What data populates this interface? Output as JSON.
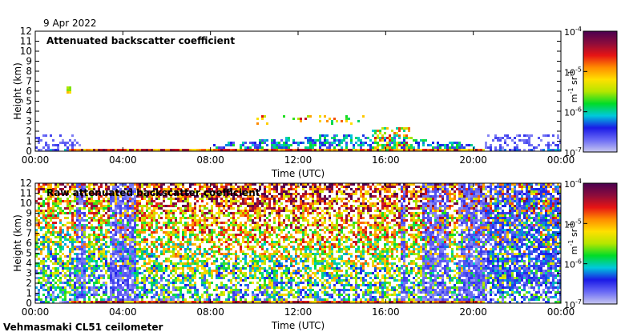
{
  "header": {
    "date": "9 Apr 2022"
  },
  "footer": {
    "instrument": "Vehmasmaki CL51 ceilometer"
  },
  "colormap": {
    "stops": [
      "#c8c8f0",
      "#6a6af5",
      "#1a1ae6",
      "#00c8dc",
      "#00dc28",
      "#b4e600",
      "#ffe000",
      "#ff8c00",
      "#e61414",
      "#8c0c3c",
      "#4a0050"
    ]
  },
  "chart_data": [
    {
      "type": "heatmap",
      "title": "Attenuated backscatter coefficient",
      "xlabel": "Time (UTC)",
      "ylabel": "Height (km)",
      "x_ticks": [
        "00:00",
        "04:00",
        "08:00",
        "12:00",
        "16:00",
        "20:00",
        "00:00"
      ],
      "xlim_hours": [
        0,
        24
      ],
      "y_ticks": [
        "0",
        "1",
        "2",
        "3",
        "4",
        "5",
        "6",
        "7",
        "8",
        "9",
        "10",
        "11",
        "12"
      ],
      "ylim_km": [
        0,
        12
      ],
      "colorbar": {
        "scale": "log",
        "ticks": [
          {
            "base": "10",
            "exp": "-4"
          },
          {
            "base": "10",
            "exp": "-5"
          },
          {
            "base": "10",
            "exp": "-6"
          },
          {
            "base": "10",
            "exp": "-7"
          }
        ],
        "unit": {
          "m": "m",
          "m_exp": "-1",
          "sr": " sr",
          "sr_exp": "-1"
        },
        "range": [
          1e-07,
          0.0001
        ]
      }
    },
    {
      "type": "heatmap",
      "title": "Raw attenuated backscatter coefficient",
      "xlabel": "Time (UTC)",
      "ylabel": "Height (km)",
      "x_ticks": [
        "00:00",
        "04:00",
        "08:00",
        "12:00",
        "16:00",
        "20:00",
        "00:00"
      ],
      "xlim_hours": [
        0,
        24
      ],
      "y_ticks": [
        "0",
        "1",
        "2",
        "3",
        "4",
        "5",
        "6",
        "7",
        "8",
        "9",
        "10",
        "11",
        "12"
      ],
      "ylim_km": [
        0,
        12
      ],
      "colorbar": {
        "scale": "log",
        "ticks": [
          {
            "base": "10",
            "exp": "-4"
          },
          {
            "base": "10",
            "exp": "-5"
          },
          {
            "base": "10",
            "exp": "-6"
          },
          {
            "base": "10",
            "exp": "-7"
          }
        ],
        "unit": {
          "m": "m",
          "m_exp": "-1",
          "sr": " sr",
          "sr_exp": "-1"
        },
        "range": [
          1e-07,
          0.0001
        ]
      }
    }
  ]
}
